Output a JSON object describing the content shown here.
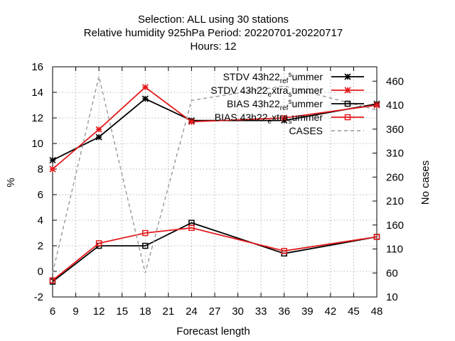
{
  "chart_data": {
    "type": "line",
    "title_lines": [
      "Selection: ALL using    30 stations",
      "Relative humidity 925hPa   Period: 20220701-20220717",
      "Hours:  12"
    ],
    "xlabel": "Forecast length",
    "ylabel": "%",
    "y2label": "No cases",
    "xlim": [
      6,
      48
    ],
    "ylim": [
      -2,
      16
    ],
    "y2lim": [
      10,
      490
    ],
    "x_ticks": [
      6,
      9,
      12,
      15,
      18,
      21,
      24,
      27,
      30,
      33,
      36,
      39,
      42,
      45,
      48
    ],
    "y_ticks": [
      -2,
      0,
      2,
      4,
      6,
      8,
      10,
      12,
      14,
      16
    ],
    "y2_ticks": [
      10,
      60,
      110,
      160,
      210,
      260,
      310,
      360,
      410,
      460
    ],
    "grid": true,
    "legend_position": "top-right",
    "series": [
      {
        "name": "STDV 43h22_ref_summer",
        "legend_parts": [
          [
            "STDV 43h22",
            "base"
          ],
          [
            "ref",
            "sub"
          ],
          [
            "s",
            "sup"
          ],
          [
            "ummer",
            "base"
          ]
        ],
        "axis": "y1",
        "color": "#000000",
        "marker": "star",
        "dash": "solid",
        "x": [
          6,
          12,
          18,
          24,
          36,
          48
        ],
        "values": [
          8.7,
          10.5,
          13.5,
          11.8,
          11.8,
          13.1
        ]
      },
      {
        "name": "STDV 43h22_extra_summer",
        "legend_parts": [
          [
            "STDV 43h22",
            "base"
          ],
          [
            "e",
            "sub"
          ],
          [
            "xtra",
            "base"
          ],
          [
            "s",
            "sub"
          ],
          [
            "ummer",
            "base"
          ]
        ],
        "axis": "y1",
        "color": "#e41a1c",
        "marker": "star",
        "dash": "solid",
        "x": [
          6,
          12,
          18,
          24,
          36,
          48
        ],
        "values": [
          8.0,
          11.1,
          14.4,
          11.7,
          12.0,
          13.0
        ]
      },
      {
        "name": "BIAS 43h22_ref_summer",
        "legend_parts": [
          [
            "BIAS 43h22",
            "base"
          ],
          [
            "ref",
            "sub"
          ],
          [
            "s",
            "sup"
          ],
          [
            "ummer",
            "base"
          ]
        ],
        "axis": "y1",
        "color": "#000000",
        "marker": "square",
        "dash": "solid",
        "x": [
          6,
          12,
          18,
          24,
          36,
          48
        ],
        "values": [
          -0.8,
          2.0,
          2.0,
          3.8,
          1.4,
          2.7
        ]
      },
      {
        "name": "BIAS 43h22_extra_summer",
        "legend_parts": [
          [
            "BIAS 43h22",
            "base"
          ],
          [
            "e",
            "sub"
          ],
          [
            "xtra",
            "base"
          ],
          [
            "s",
            "sub"
          ],
          [
            "ummer",
            "base"
          ]
        ],
        "axis": "y1",
        "color": "#e41a1c",
        "marker": "square",
        "dash": "solid",
        "x": [
          6,
          12,
          18,
          24,
          36,
          48
        ],
        "values": [
          -0.7,
          2.2,
          3.0,
          3.4,
          1.6,
          2.7
        ]
      },
      {
        "name": "CASES",
        "legend_parts": [
          [
            "CASES",
            "base"
          ]
        ],
        "axis": "y2",
        "color": "#999999",
        "marker": "none",
        "dash": "dashed",
        "x": [
          6,
          12,
          18,
          24,
          36,
          48
        ],
        "values": [
          60,
          470,
          60,
          420,
          450,
          400
        ]
      }
    ]
  }
}
